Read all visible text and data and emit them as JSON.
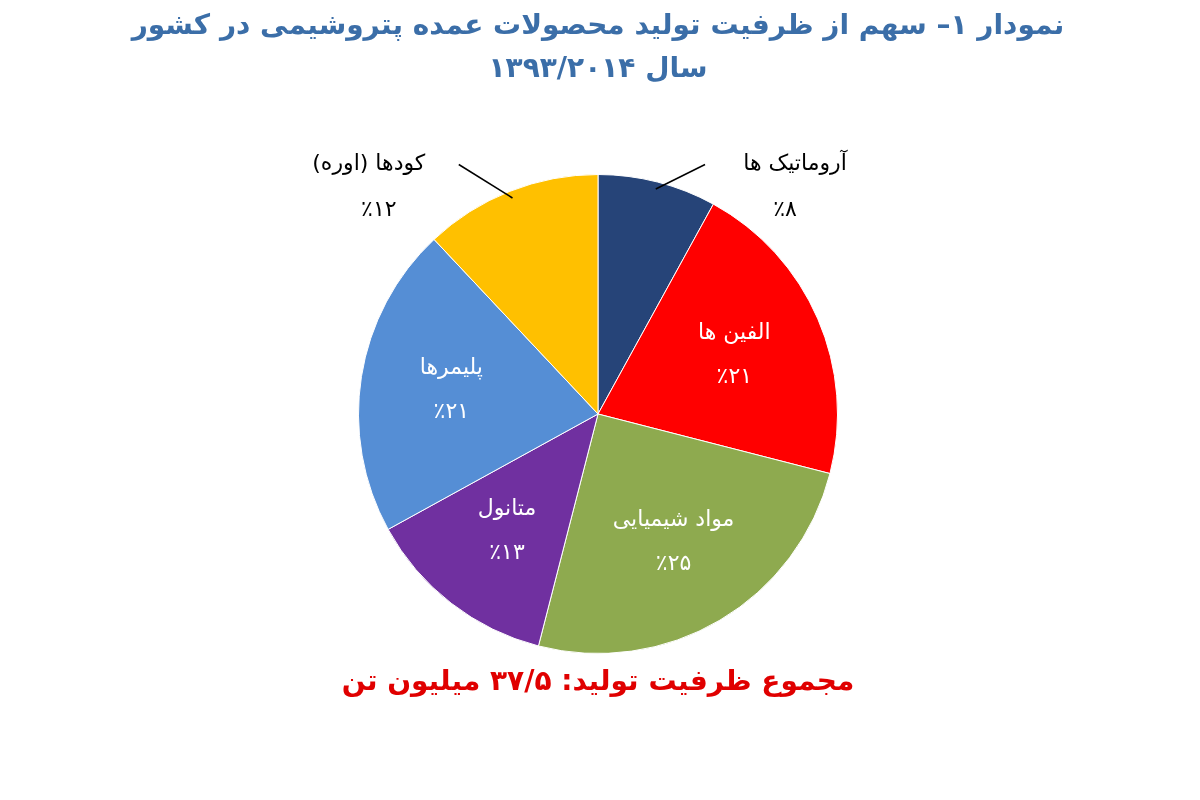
{
  "chart_data": {
    "type": "pie",
    "title": "نمودار ۱– سهم از ظرفیت تولید محصولات عمده پتروشیمی در کشور",
    "subtitle": "سال ۱۳۹۳/۲۰۱۴",
    "categories": [
      "آروماتیک ها",
      "الفین ها",
      "مواد شیمیایی",
      "متانول",
      "پلیمرها",
      "کودها (اوره)"
    ],
    "values": [
      8,
      21,
      25,
      13,
      21,
      12
    ],
    "value_labels": [
      "٪۸",
      "٪۲۱",
      "٪۲۵",
      "٪۱۳",
      "٪۲۱",
      "٪۱۲"
    ],
    "colors": [
      "#264478",
      "#ff0000",
      "#8eaa4f",
      "#7030a0",
      "#558ed5",
      "#ffc000"
    ],
    "annotations": [
      "مجموع ظرفیت تولید: ۳۷/۵ میلیون تن"
    ],
    "legend": false
  }
}
